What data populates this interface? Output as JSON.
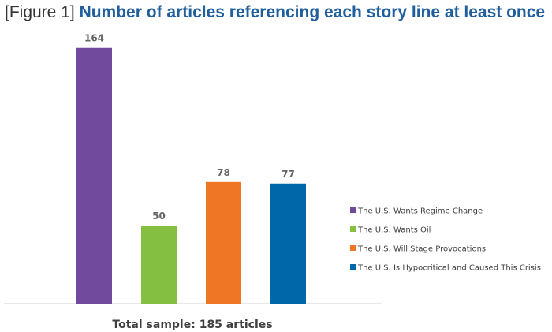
{
  "title_prefix": "[Figure 1]",
  "title_main": "Number of articles referencing each story line at least once",
  "footnote": "Total sample: 185 articles",
  "chart_data": {
    "type": "bar",
    "title": "Number of articles referencing each story line at least once",
    "categories": [
      "The U.S. Wants Regime Change",
      "The U.S. Wants Oil",
      "The U.S. Will Stage Provocations",
      "The U.S. Is Hypocritical and Caused This Crisis"
    ],
    "values": [
      164,
      50,
      78,
      77
    ],
    "colors": [
      "#714a9e",
      "#84bf41",
      "#ee7624",
      "#0068a9"
    ],
    "ylim": [
      0,
      175
    ],
    "grid": false,
    "legend": "right",
    "xlabel": "Total sample: 185 articles",
    "ylabel": ""
  }
}
